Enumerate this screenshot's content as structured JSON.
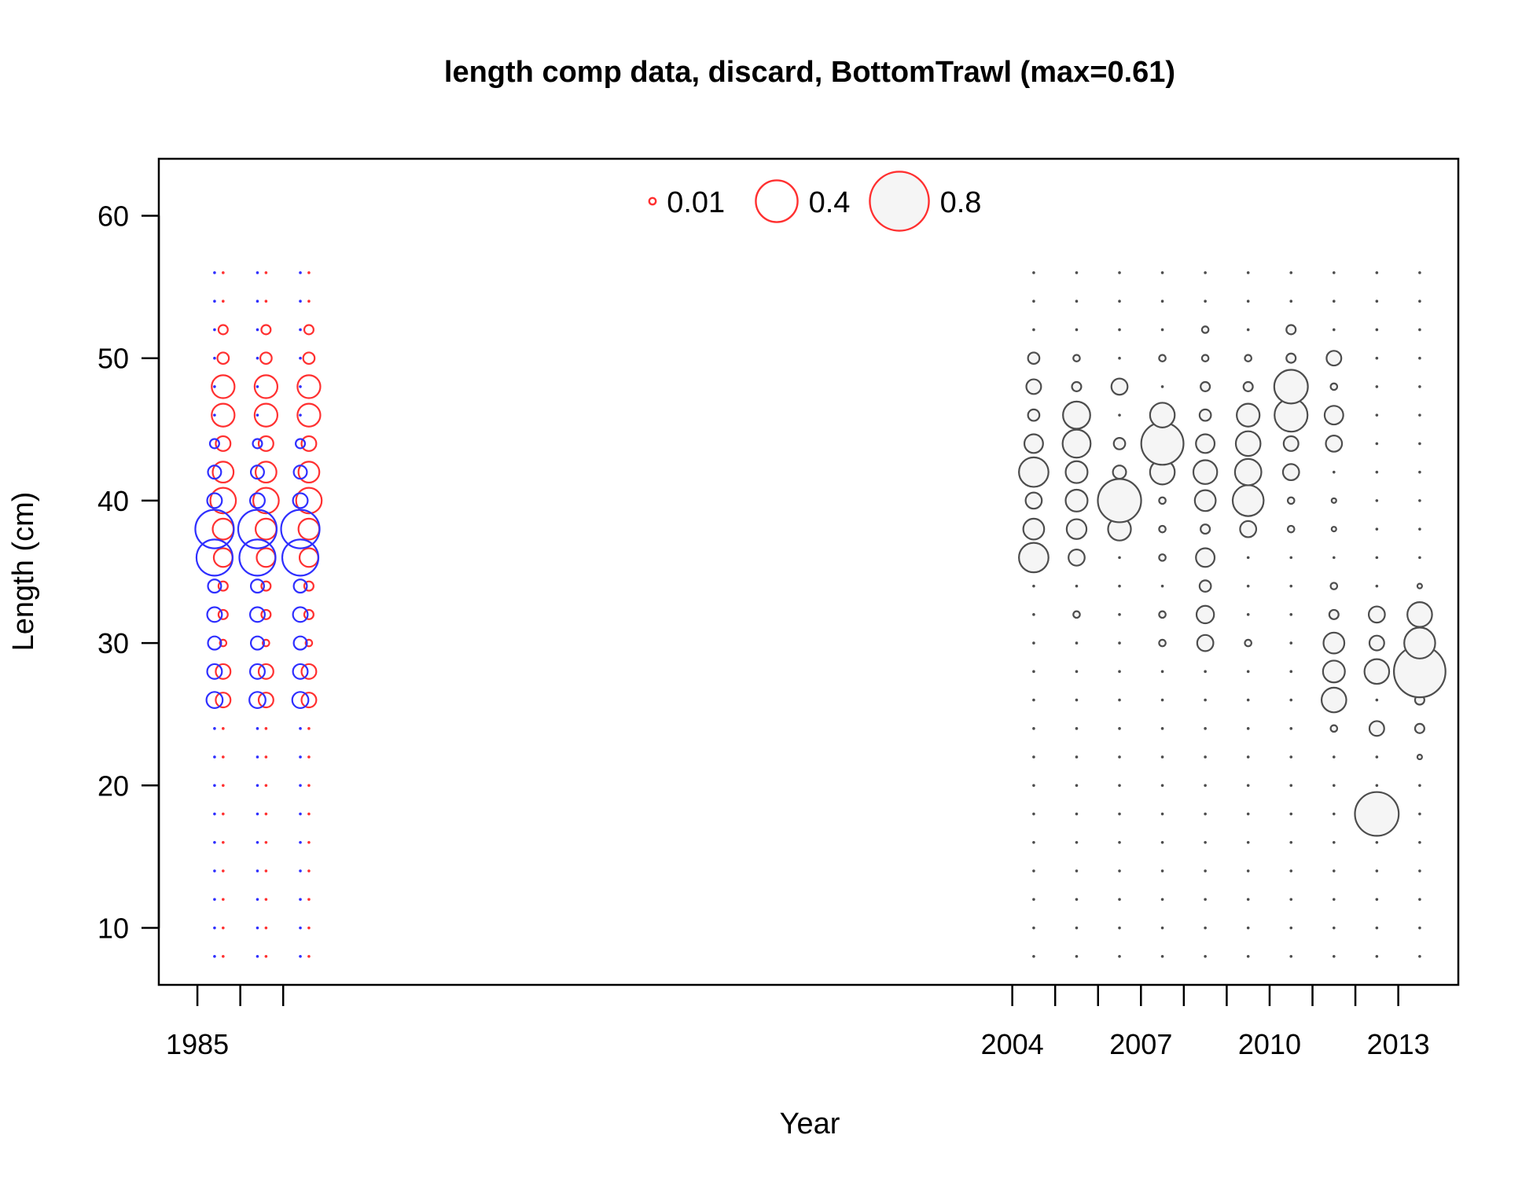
{
  "chart_data": {
    "type": "scatter",
    "subtype": "bubble",
    "title": "length comp data, discard, BottomTrawl (max=0.61)",
    "xlabel": "Year",
    "ylabel": "Length (cm)",
    "xlim": [
      1984.1,
      2014.4
    ],
    "ylim": [
      6,
      64
    ],
    "x_ticks": [
      1985,
      1986,
      1987,
      2004,
      2005,
      2006,
      2007,
      2008,
      2009,
      2010,
      2011,
      2012,
      2013
    ],
    "x_tick_labels": [
      "1985",
      "",
      "",
      "2004",
      "",
      "",
      "2007",
      "",
      "",
      "2010",
      "",
      "",
      "2013"
    ],
    "y_ticks": [
      10,
      20,
      30,
      40,
      50,
      60
    ],
    "y_tick_labels": [
      "10",
      "20",
      "30",
      "40",
      "50",
      "60"
    ],
    "grid": false,
    "colors": {
      "female": "#ff3030",
      "male": "#2f2fff",
      "combined": "#4d4d4d",
      "fill": "#f5f5f5"
    },
    "legend": {
      "placement": "top-center",
      "entries": [
        {
          "label": "0.01",
          "value": 0.01
        },
        {
          "label": "0.4",
          "value": 0.4
        },
        {
          "label": "0.8",
          "value": 0.8
        }
      ]
    },
    "length_bins": [
      8,
      10,
      12,
      14,
      16,
      18,
      20,
      22,
      24,
      26,
      28,
      30,
      32,
      34,
      36,
      38,
      40,
      42,
      44,
      46,
      48,
      50,
      52,
      54,
      56
    ],
    "series": [
      {
        "name": "female",
        "color": "#ff3030",
        "years": [
          1985.5,
          1986.5,
          1987.5
        ],
        "offset": 0.1,
        "points": {
          "26": 0.05,
          "28": 0.05,
          "30": 0.01,
          "32": 0.02,
          "34": 0.02,
          "36": 0.08,
          "38": 0.1,
          "40": 0.15,
          "42": 0.1,
          "44": 0.05,
          "46": 0.12,
          "48": 0.12,
          "50": 0.03,
          "52": 0.02
        }
      },
      {
        "name": "male",
        "color": "#2f2fff",
        "years": [
          1985.5,
          1986.5,
          1987.5
        ],
        "offset": -0.1,
        "points": {
          "26": 0.06,
          "28": 0.05,
          "30": 0.04,
          "32": 0.05,
          "34": 0.04,
          "36": 0.3,
          "38": 0.34,
          "40": 0.05,
          "42": 0.04,
          "44": 0.02
        }
      },
      {
        "name": "combined",
        "color": "#4d4d4d",
        "columns": [
          {
            "year": 2004.5,
            "points": {
              "36": 0.2,
              "38": 0.1,
              "40": 0.06,
              "42": 0.2,
              "44": 0.08,
              "46": 0.03,
              "48": 0.05,
              "50": 0.03
            }
          },
          {
            "year": 2005.5,
            "points": {
              "32": 0.01,
              "36": 0.06,
              "38": 0.09,
              "40": 0.11,
              "42": 0.11,
              "44": 0.18,
              "46": 0.17,
              "48": 0.02,
              "50": 0.01
            }
          },
          {
            "year": 2006.5,
            "points": {
              "38": 0.12,
              "40": 0.43,
              "42": 0.04,
              "44": 0.03,
              "48": 0.06
            }
          },
          {
            "year": 2007.5,
            "points": {
              "30": 0.01,
              "32": 0.01,
              "36": 0.01,
              "38": 0.01,
              "40": 0.01,
              "42": 0.14,
              "44": 0.41,
              "46": 0.14,
              "50": 0.01
            }
          },
          {
            "year": 2008.5,
            "points": {
              "30": 0.06,
              "32": 0.07,
              "34": 0.03,
              "36": 0.08,
              "38": 0.02,
              "40": 0.1,
              "42": 0.13,
              "44": 0.08,
              "46": 0.03,
              "48": 0.02,
              "50": 0.01,
              "52": 0.01
            }
          },
          {
            "year": 2009.5,
            "points": {
              "30": 0.01,
              "38": 0.06,
              "40": 0.22,
              "42": 0.16,
              "44": 0.14,
              "46": 0.12,
              "48": 0.02,
              "50": 0.01
            }
          },
          {
            "year": 2010.5,
            "points": {
              "38": 0.01,
              "40": 0.01,
              "42": 0.06,
              "44": 0.05,
              "46": 0.25,
              "48": 0.26,
              "50": 0.02,
              "52": 0.02
            }
          },
          {
            "year": 2011.5,
            "points": {
              "24": 0.01,
              "26": 0.14,
              "28": 0.11,
              "30": 0.1,
              "32": 0.02,
              "34": 0.01,
              "38": 0.005,
              "40": 0.005,
              "44": 0.06,
              "46": 0.08,
              "48": 0.01,
              "50": 0.05
            }
          },
          {
            "year": 2012.5,
            "points": {
              "18": 0.44,
              "24": 0.05,
              "28": 0.14,
              "30": 0.05,
              "32": 0.06
            }
          },
          {
            "year": 2013.5,
            "points": {
              "22": 0.005,
              "24": 0.02,
              "26": 0.02,
              "28": 0.61,
              "30": 0.22,
              "32": 0.14,
              "34": 0.005
            }
          }
        ]
      }
    ]
  }
}
